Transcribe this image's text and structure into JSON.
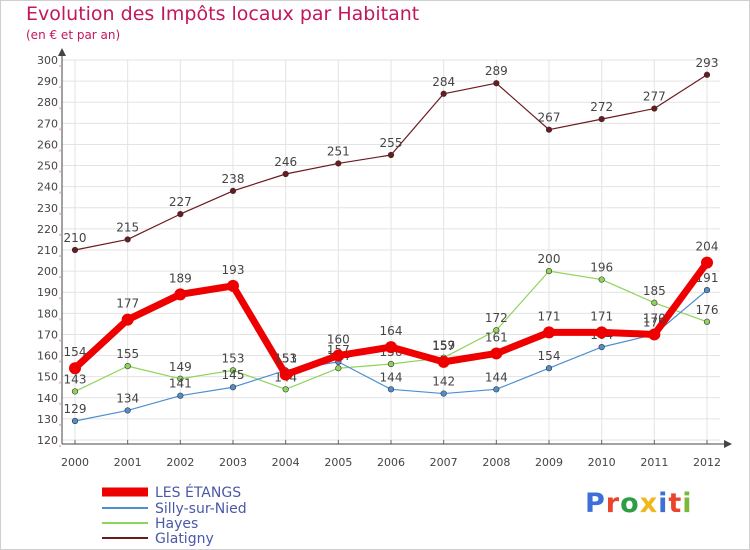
{
  "header": {
    "title": "Evolution des Impôts locaux par Habitant",
    "subtitle": "(en € et par an)"
  },
  "logo": {
    "text": "Proxiti",
    "colors": [
      "#3d6fd6",
      "#e8452c",
      "#2e9d44",
      "#f2b81b",
      "#3d6fd6",
      "#e8452c",
      "#7ab83a"
    ]
  },
  "chart_data": {
    "type": "line",
    "title": "Evolution des Impôts locaux par Habitant",
    "subtitle": "(en € et par an)",
    "xlabel": "",
    "ylabel": "",
    "ylim": [
      120,
      300
    ],
    "ytick_step": 10,
    "grid": true,
    "legend_position": "bottom-left",
    "x": [
      "2000",
      "2001",
      "2002",
      "2003",
      "2004",
      "2005",
      "2006",
      "2007",
      "2008",
      "2009",
      "2010",
      "2011",
      "2012"
    ],
    "series": [
      {
        "name": "Glatigny",
        "color": "#6b1a1f",
        "values": [
          210,
          215,
          227,
          238,
          246,
          251,
          255,
          284,
          289,
          267,
          272,
          277,
          293
        ],
        "labels": [
          "210",
          "215",
          "227",
          "238",
          "246",
          "251",
          "255",
          "284",
          "289",
          "267",
          "272",
          "277",
          "293"
        ]
      },
      {
        "name": "Hayes",
        "color": "#8ed45a",
        "values": [
          143,
          155,
          149,
          153,
          144,
          154,
          156,
          159,
          172,
          200,
          196,
          185,
          176
        ],
        "labels": [
          "143",
          "155",
          "149",
          "153",
          "144",
          "154",
          "156",
          "159",
          "172",
          "200",
          "196",
          "185",
          "176"
        ]
      },
      {
        "name": "Silly-sur-Nied",
        "color": "#4f8fd0",
        "values": [
          129,
          134,
          141,
          145,
          153,
          157,
          144,
          142,
          144,
          154,
          164,
          170,
          191
        ],
        "labels": [
          "129",
          "134",
          "141",
          "145",
          "153",
          "157",
          "144",
          "142",
          "144",
          "154",
          "164",
          "170",
          "191"
        ]
      },
      {
        "name": "LES ÉTANGS",
        "color": "#ee0000",
        "values": [
          154,
          177,
          189,
          193,
          151,
          160,
          164,
          157,
          161,
          171,
          171,
          170,
          204
        ],
        "labels": [
          "154",
          "177",
          "189",
          "193",
          "151",
          "160",
          "164",
          "157",
          "161",
          "171",
          "171",
          "170",
          "204"
        ]
      }
    ],
    "legend": [
      "LES ÉTANGS",
      "Silly-sur-Nied",
      "Hayes",
      "Glatigny"
    ]
  }
}
